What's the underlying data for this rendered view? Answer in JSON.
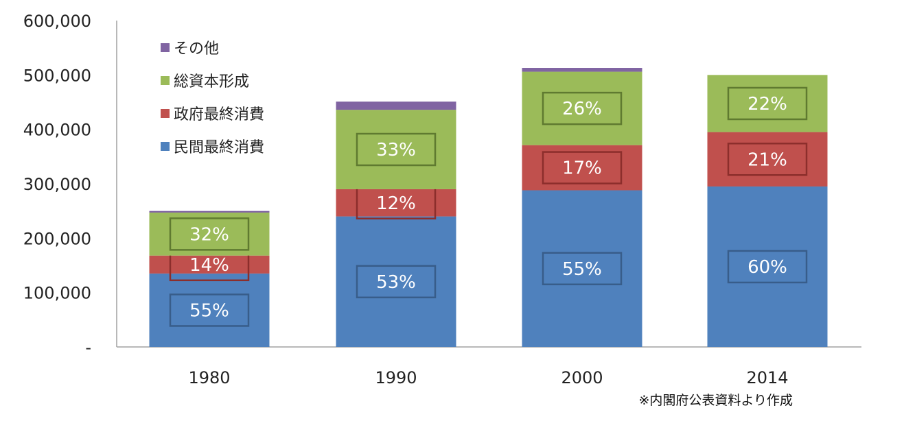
{
  "chart_data": {
    "type": "bar",
    "stacked": true,
    "title": "",
    "xlabel": "",
    "ylabel": "",
    "categories": [
      "1980",
      "1990",
      "2000",
      "2014"
    ],
    "ylim": [
      0,
      600000
    ],
    "yticks": [
      0,
      100000,
      200000,
      300000,
      400000,
      500000,
      600000
    ],
    "ytick_labels": [
      "-",
      "100,000",
      "200,000",
      "300,000",
      "400,000",
      "500,000",
      "600,000"
    ],
    "grid": false,
    "legend_position": "top-left",
    "series": [
      {
        "name": "民間最終消費",
        "color": "#4F81BD",
        "values": [
          135000,
          240000,
          288000,
          295000
        ],
        "labels": [
          "55%",
          "53%",
          "55%",
          "60%"
        ],
        "label_box_color": "#385D8A"
      },
      {
        "name": "政府最終消費",
        "color": "#C0504D",
        "values": [
          33000,
          50000,
          83000,
          100000
        ],
        "labels": [
          "14%",
          "12%",
          "17%",
          "21%"
        ],
        "label_box_color": "#8C2E2C"
      },
      {
        "name": "総資本形成",
        "color": "#9BBB59",
        "values": [
          79000,
          146000,
          135000,
          105000
        ],
        "labels": [
          "32%",
          "33%",
          "26%",
          "22%"
        ],
        "label_box_color": "#5F7A30"
      },
      {
        "name": "その他",
        "color": "#8064A2",
        "values": [
          3000,
          15000,
          7000,
          0
        ],
        "labels": [
          "",
          "",
          "",
          ""
        ],
        "label_box_color": ""
      }
    ],
    "note": "※内閣府公表資料より作成"
  }
}
